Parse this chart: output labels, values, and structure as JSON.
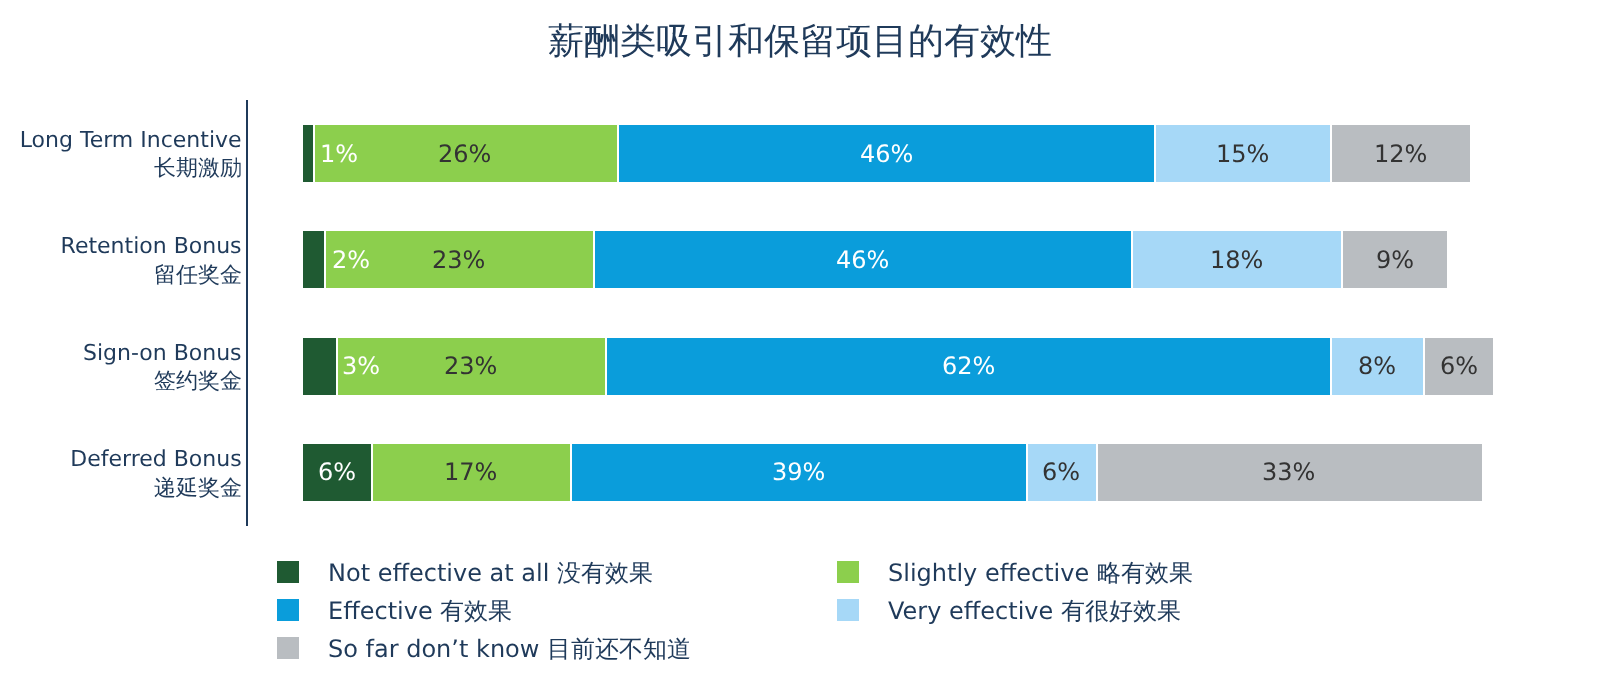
{
  "chart_data": {
    "type": "bar",
    "title": "薪酬类吸引和保留项目的有效性",
    "orientation": "horizontal",
    "stacked": true,
    "legend": "bottom",
    "categories": [
      "Long Term Incentive\n长期激励",
      "Retention Bonus\n留任奖金",
      "Sign-on Bonus\n签约奖金",
      "Deferred Bonus\n递延奖金"
    ],
    "series": [
      {
        "name": "Not effective at all 没有效果",
        "color": "#1f5a32",
        "values": [
          1,
          2,
          3,
          6
        ],
        "value_labels": [
          "1%",
          "2%",
          "3%",
          "6%"
        ]
      },
      {
        "name": "Slightly effective 略有效果",
        "color": "#8ccf4d",
        "values": [
          26,
          23,
          23,
          17
        ],
        "value_labels": [
          "26%",
          "23%",
          "23%",
          "17%"
        ]
      },
      {
        "name": "Effective 有效果",
        "color": "#0a9ddb",
        "values": [
          46,
          46,
          62,
          39
        ],
        "value_labels": [
          "46%",
          "46%",
          "62%",
          "39%"
        ]
      },
      {
        "name": "Very effective 有很好效果",
        "color": "#a6d8f7",
        "values": [
          15,
          18,
          8,
          6
        ],
        "value_labels": [
          "15%",
          "18%",
          "8%",
          "6%"
        ]
      },
      {
        "name": "So far don’t know 目前还不知道",
        "color": "#b9bdc1",
        "values": [
          12,
          9,
          6,
          33
        ],
        "value_labels": [
          "12%",
          "9%",
          "6%",
          "33%"
        ]
      }
    ]
  }
}
